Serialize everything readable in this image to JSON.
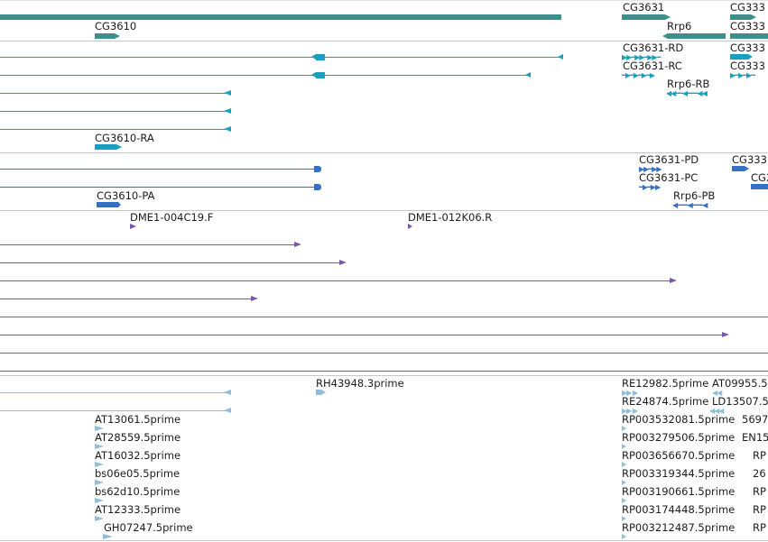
{
  "colors": {
    "gene": "#3c8f8a",
    "transcript": "#1aa0bf",
    "protein": "#3570c6",
    "mapped": "#7b55ad",
    "est": "#8fbedc",
    "divider": "#c7c7c7"
  },
  "gene_track": {
    "labels": {
      "cg3631": "CG3631",
      "cg333_top": "CG333",
      "cg3610": "CG3610",
      "rrp6": "Rrp6",
      "cg333_second": "CG333"
    }
  },
  "transcript_track": {
    "labels": {
      "cg3631_rd": "CG3631-RD",
      "cg333_a": "CG333",
      "cg3631_rc": "CG3631-RC",
      "cg333_b": "CG333",
      "rrp6_rb": "Rrp6-RB",
      "cg3610_ra": "CG3610-RA"
    }
  },
  "protein_track": {
    "labels": {
      "cg3631_pd": "CG3631-PD",
      "cg333": "CG333",
      "cg3631_pc": "CG3631-PC",
      "cg2": "CG2",
      "cg3610_pa": "CG3610-PA",
      "rrp6_pb": "Rrp6-PB"
    }
  },
  "mapped_track": {
    "labels": {
      "dme1_004c19": "DME1-004C19.F",
      "dme1_012k06": "DME1-012K06.R"
    }
  },
  "est_track": {
    "labels": {
      "rh43948": "RH43948.3prime",
      "re12982": "RE12982.5prime",
      "at09955": "AT09955.5",
      "re24874": "RE24874.5prime",
      "ld13507": "LD13507.5",
      "at13061": "AT13061.5prime",
      "rp003532081": "RP003532081.5prime",
      "col_5697": "5697",
      "at28559": "AT28559.5prime",
      "rp003279506": "RP003279506.5prime",
      "col_en15": "EN15",
      "at16032": "AT16032.5prime",
      "rp003656670": "RP003656670.5prime",
      "col_rp_1": "RP",
      "bs06e05": "bs06e05.5prime",
      "rp003319344": "RP003319344.5prime",
      "col_26": "26",
      "bs62d10": "bs62d10.5prime",
      "rp003190661": "RP003190661.5prime",
      "col_rp_2": "RP",
      "at12333": "AT12333.5prime",
      "rp003174448": "RP003174448.5prime",
      "col_rp_3": "RP",
      "gh07247": "GH07247.5prime",
      "rp003212487": "RP003212487.5prime",
      "col_rp_4": "RP"
    }
  }
}
